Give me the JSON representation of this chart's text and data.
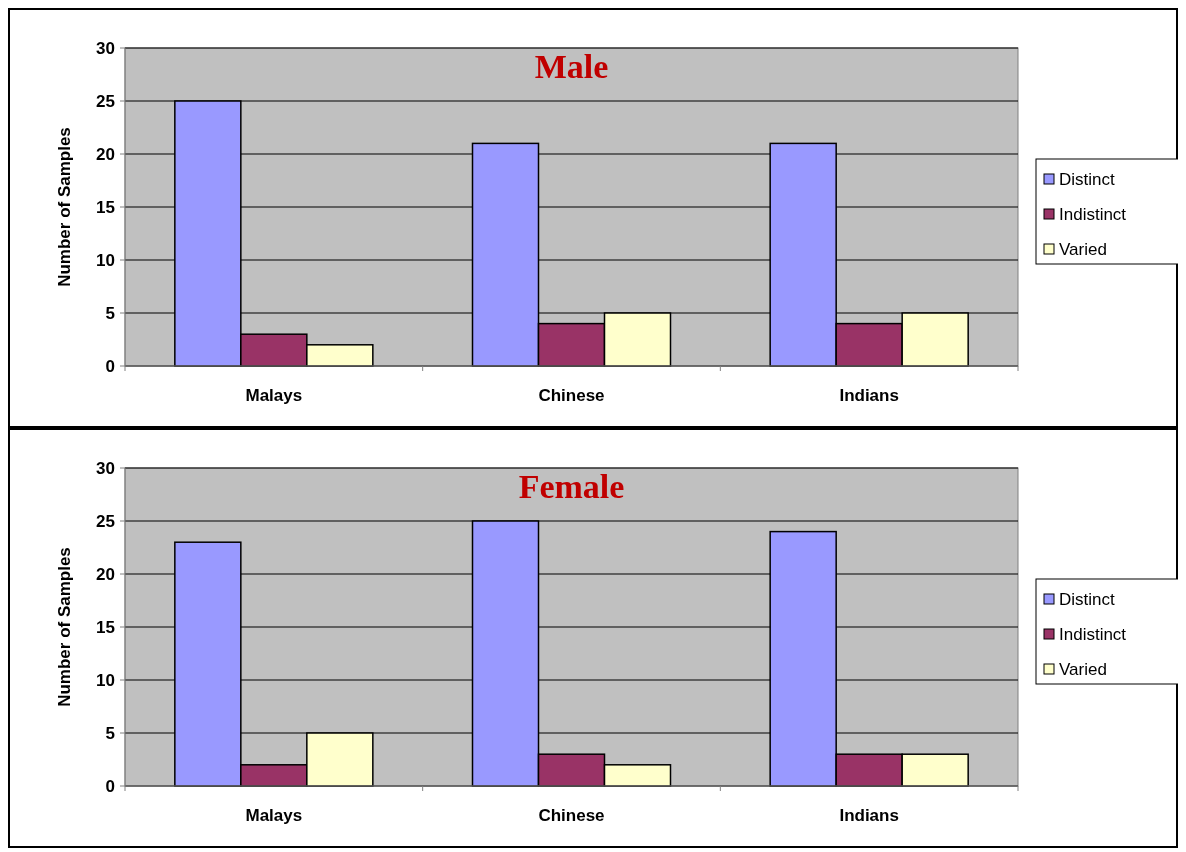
{
  "chart_data": [
    {
      "type": "bar",
      "title": "Male",
      "ylabel": "Number of Samples",
      "categories": [
        "Malays",
        "Chinese",
        "Indians"
      ],
      "series": [
        {
          "name": "Distinct",
          "color": "#9999ff",
          "values": [
            25,
            21,
            21
          ]
        },
        {
          "name": "Indistinct",
          "color": "#993366",
          "values": [
            3,
            4,
            4
          ]
        },
        {
          "name": "Varied",
          "color": "#ffffcc",
          "values": [
            2,
            5,
            5
          ]
        }
      ],
      "ylim": [
        0,
        30
      ],
      "yticks": [
        0,
        5,
        10,
        15,
        20,
        25,
        30
      ],
      "grid": "y",
      "legend": "right"
    },
    {
      "type": "bar",
      "title": "Female",
      "ylabel": "Number of Samples",
      "categories": [
        "Malays",
        "Chinese",
        "Indians"
      ],
      "series": [
        {
          "name": "Distinct",
          "color": "#9999ff",
          "values": [
            23,
            25,
            24
          ]
        },
        {
          "name": "Indistinct",
          "color": "#993366",
          "values": [
            2,
            3,
            3
          ]
        },
        {
          "name": "Varied",
          "color": "#ffffcc",
          "values": [
            5,
            2,
            3
          ]
        }
      ],
      "ylim": [
        0,
        30
      ],
      "yticks": [
        0,
        5,
        10,
        15,
        20,
        25,
        30
      ],
      "grid": "y",
      "legend": "right"
    }
  ]
}
